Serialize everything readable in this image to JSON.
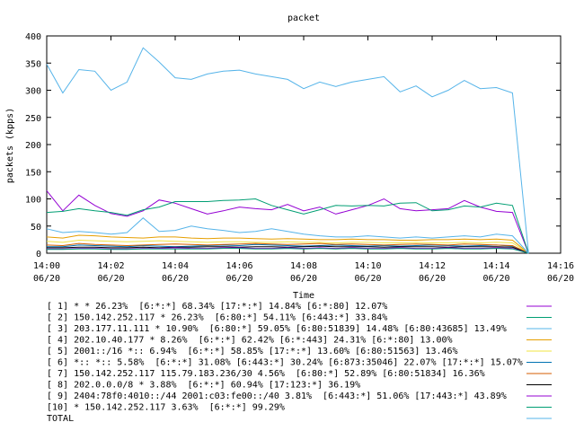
{
  "chart_data": {
    "type": "line",
    "title": "packet",
    "xlabel": "Time",
    "ylabel": "packets (kpps)",
    "ylim": [
      0,
      400
    ],
    "y_ticks": [
      0,
      50,
      100,
      150,
      200,
      250,
      300,
      350,
      400
    ],
    "x_ticks": [
      {
        "time": "14:00",
        "date": "06/20"
      },
      {
        "time": "14:02",
        "date": "06/20"
      },
      {
        "time": "14:04",
        "date": "06/20"
      },
      {
        "time": "14:06",
        "date": "06/20"
      },
      {
        "time": "14:08",
        "date": "06/20"
      },
      {
        "time": "14:10",
        "date": "06/20"
      },
      {
        "time": "14:12",
        "date": "06/20"
      },
      {
        "time": "14:14",
        "date": "06/20"
      },
      {
        "time": "14:16",
        "date": "06/20"
      }
    ],
    "x": [
      "14:00:00",
      "14:00:30",
      "14:01:00",
      "14:01:30",
      "14:02:00",
      "14:02:30",
      "14:03:00",
      "14:03:30",
      "14:04:00",
      "14:04:30",
      "14:05:00",
      "14:05:30",
      "14:06:00",
      "14:06:30",
      "14:07:00",
      "14:07:30",
      "14:08:00",
      "14:08:30",
      "14:09:00",
      "14:09:30",
      "14:10:00",
      "14:10:30",
      "14:11:00",
      "14:11:30",
      "14:12:00",
      "14:12:30",
      "14:13:00",
      "14:13:30",
      "14:14:00",
      "14:14:30",
      "14:15:00"
    ],
    "series": [
      {
        "label": "[ 1] * * 26.23%  [6:*:*] 68.34% [17:*:*] 14.84% [6:*:80] 12.07%",
        "color": "#9400d3",
        "values": [
          115,
          78,
          107,
          88,
          73,
          68,
          78,
          98,
          92,
          82,
          72,
          78,
          85,
          82,
          80,
          90,
          78,
          85,
          72,
          80,
          88,
          100,
          82,
          78,
          80,
          82,
          97,
          85,
          77,
          75,
          0
        ]
      },
      {
        "label": "[ 2] 150.142.252.117 * 26.23%  [6:80:*] 54.11% [6:443:*] 33.84%",
        "color": "#009e73",
        "values": [
          75,
          77,
          82,
          78,
          75,
          70,
          80,
          85,
          95,
          95,
          95,
          97,
          98,
          100,
          88,
          80,
          72,
          80,
          88,
          87,
          88,
          87,
          92,
          93,
          78,
          80,
          87,
          85,
          92,
          88,
          0
        ]
      },
      {
        "label": "[ 3] 203.177.11.111 * 10.90%  [6:80:*] 59.05% [6:80:51839] 14.48% [6:80:43685] 13.49%",
        "color": "#56b4e9",
        "values": [
          348,
          295,
          338,
          335,
          300,
          315,
          378,
          352,
          323,
          320,
          330,
          335,
          337,
          330,
          325,
          320,
          303,
          315,
          307,
          315,
          320,
          325,
          297,
          308,
          288,
          300,
          318,
          303,
          305,
          295,
          0
        ]
      },
      {
        "label": "[ 4] 202.10.40.177 * 8.26%  [6:*:*] 62.42% [6:*:443] 24.31% [6:*:80] 13.00%",
        "color": "#e69f00",
        "values": [
          30,
          28,
          33,
          32,
          30,
          29,
          28,
          30,
          30,
          28,
          27,
          28,
          28,
          27,
          26,
          27,
          26,
          25,
          25,
          26,
          25,
          25,
          24,
          24,
          25,
          25,
          26,
          25,
          26,
          24,
          0
        ]
      },
      {
        "label": "[ 5] 2001::/16 *:: 6.94%  [6:*:*] 58.85% [17:*:*] 13.60% [6:80:51563] 13.46%",
        "color": "#f0e442",
        "values": [
          22,
          20,
          24,
          23,
          22,
          21,
          22,
          23,
          22,
          21,
          20,
          21,
          21,
          20,
          20,
          21,
          20,
          20,
          19,
          20,
          20,
          19,
          19,
          20,
          19,
          19,
          20,
          19,
          20,
          19,
          0
        ]
      },
      {
        "label": "[ 6] *:: *:: 5.58%  [6:*:*] 31.08% [6:443:*] 30.24% [6:873:35046] 22.07% [17:*:*] 15.07%",
        "color": "#0072b2",
        "values": [
          12,
          12,
          15,
          14,
          13,
          12,
          14,
          13,
          12,
          13,
          14,
          15,
          14,
          16,
          15,
          14,
          13,
          14,
          15,
          14,
          13,
          14,
          13,
          14,
          15,
          14,
          13,
          14,
          15,
          13,
          0
        ]
      },
      {
        "label": "[ 7] 150.142.252.117 115.79.183.236/30 4.56%  [6:80:*] 52.89% [6:80:51834] 16.36%",
        "color": "#d55e00",
        "values": [
          15,
          14,
          18,
          16,
          15,
          14,
          15,
          16,
          17,
          16,
          15,
          16,
          17,
          18,
          17,
          16,
          17,
          18,
          16,
          17,
          16,
          15,
          16,
          17,
          16,
          15,
          17,
          16,
          15,
          14,
          0
        ]
      },
      {
        "label": "[ 8] 202.0.0.0/8 * 3.88%  [6:*:*] 60.94% [17:123:*] 36.19%",
        "color": "#000000",
        "values": [
          10,
          10,
          11,
          11,
          10,
          10,
          11,
          10,
          11,
          11,
          12,
          12,
          11,
          12,
          12,
          11,
          12,
          13,
          12,
          12,
          12,
          11,
          12,
          12,
          12,
          11,
          12,
          12,
          12,
          11,
          0
        ]
      },
      {
        "label": "[ 9] 2404:78f0:4010::/44 2001:c03:fe00::/40 3.81%  [6:443:*] 51.06% [17:443:*] 43.89%",
        "color": "#9400d3",
        "values": [
          8,
          8,
          9,
          9,
          8,
          8,
          9,
          9,
          10,
          9,
          9,
          10,
          10,
          9,
          9,
          10,
          9,
          10,
          9,
          10,
          9,
          9,
          10,
          9,
          9,
          10,
          9,
          9,
          10,
          9,
          0
        ]
      },
      {
        "label": "[10] * 150.142.252.117 3.63%  [6:*:*] 99.29%",
        "color": "#009e73",
        "values": [
          7,
          7,
          8,
          8,
          7,
          7,
          8,
          8,
          8,
          8,
          8,
          9,
          9,
          8,
          8,
          9,
          8,
          9,
          8,
          9,
          8,
          8,
          9,
          8,
          8,
          9,
          8,
          8,
          9,
          8,
          0
        ]
      },
      {
        "label": "TOTAL",
        "color": "#56b4e9",
        "values": [
          45,
          38,
          40,
          38,
          35,
          38,
          65,
          40,
          42,
          50,
          45,
          42,
          38,
          40,
          45,
          40,
          35,
          32,
          30,
          30,
          32,
          30,
          28,
          30,
          28,
          30,
          32,
          30,
          35,
          32,
          0
        ]
      }
    ]
  }
}
